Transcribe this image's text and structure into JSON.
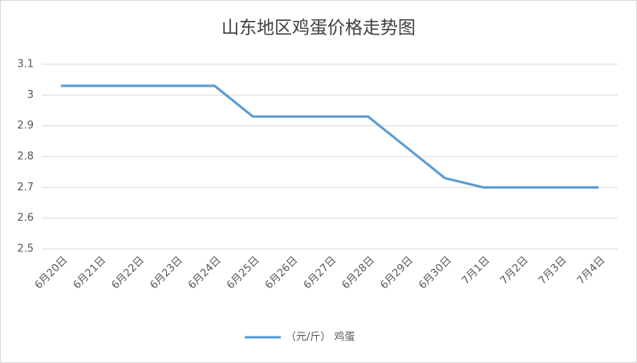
{
  "chart_data": {
    "type": "line",
    "title": "山东地区鸡蛋价格走势图",
    "categories": [
      "6月20日",
      "6月21日",
      "6月22日",
      "6月23日",
      "6月24日",
      "6月25日",
      "6月26日",
      "6月27日",
      "6月28日",
      "6月29日",
      "6月30日",
      "7月1日",
      "7月2日",
      "7月3日",
      "7月4日"
    ],
    "series": [
      {
        "name": "（元/斤） 鸡蛋",
        "color": "#5b9bd5",
        "values": [
          3.03,
          3.03,
          3.03,
          3.03,
          3.03,
          2.93,
          2.93,
          2.93,
          2.93,
          2.83,
          2.73,
          2.7,
          2.7,
          2.7,
          2.7
        ]
      }
    ],
    "ylim": [
      2.5,
      3.1
    ],
    "yticks": [
      2.5,
      2.6,
      2.7,
      2.8,
      2.9,
      3,
      3.1
    ],
    "grid": true,
    "legend": "bottom"
  }
}
